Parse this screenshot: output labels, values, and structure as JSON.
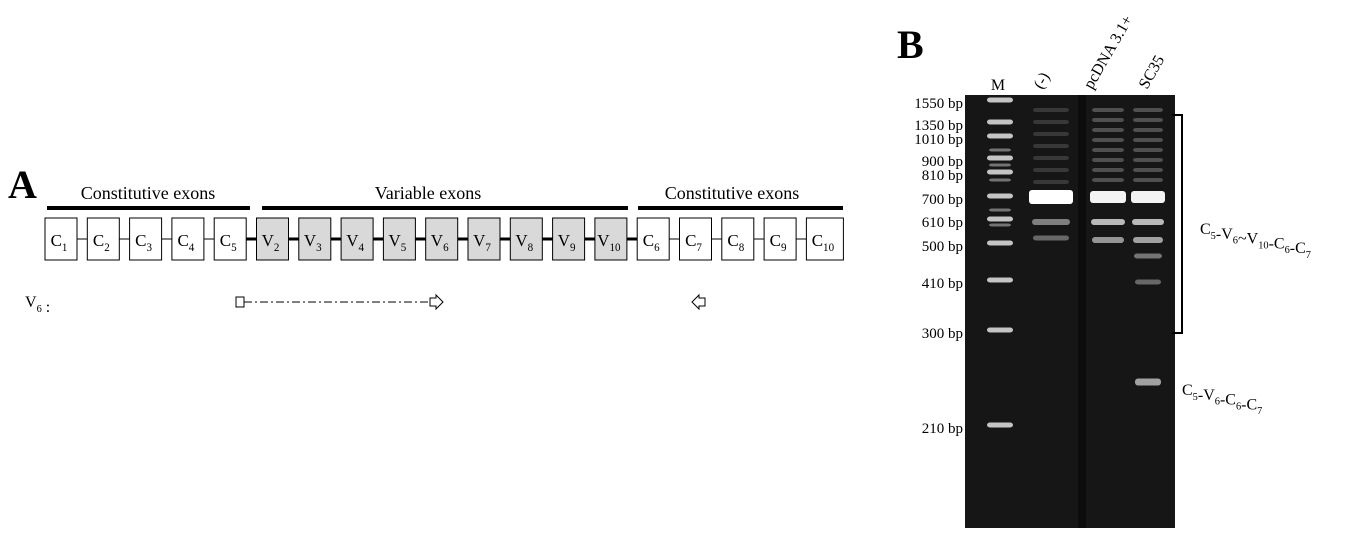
{
  "panel_a": {
    "label": "A",
    "headers": [
      "Constitutive exons",
      "Variable exons",
      "Constitutive exons"
    ],
    "exons": [
      {
        "name": "C",
        "num": "1",
        "variable": false
      },
      {
        "name": "C",
        "num": "2",
        "variable": false
      },
      {
        "name": "C",
        "num": "3",
        "variable": false
      },
      {
        "name": "C",
        "num": "4",
        "variable": false
      },
      {
        "name": "C",
        "num": "5",
        "variable": false
      },
      {
        "name": "V",
        "num": "2",
        "variable": true
      },
      {
        "name": "V",
        "num": "3",
        "variable": true
      },
      {
        "name": "V",
        "num": "4",
        "variable": true
      },
      {
        "name": "V",
        "num": "5",
        "variable": true
      },
      {
        "name": "V",
        "num": "6",
        "variable": true
      },
      {
        "name": "V",
        "num": "7",
        "variable": true
      },
      {
        "name": "V",
        "num": "8",
        "variable": true
      },
      {
        "name": "V",
        "num": "9",
        "variable": true
      },
      {
        "name": "V",
        "num": "10",
        "variable": true
      },
      {
        "name": "C",
        "num": "6",
        "variable": false
      },
      {
        "name": "C",
        "num": "7",
        "variable": false
      },
      {
        "name": "C",
        "num": "8",
        "variable": false
      },
      {
        "name": "C",
        "num": "9",
        "variable": false
      },
      {
        "name": "C",
        "num": "10",
        "variable": false
      }
    ],
    "primer_label": {
      "name": "V",
      "num": "6",
      "suffix": " :"
    }
  },
  "panel_b": {
    "label": "B",
    "lanes": [
      "M",
      "(-)",
      "pcDNA 3.1+",
      "SC35"
    ],
    "markers": [
      "1550 bp",
      "1350 bp",
      "1010 bp",
      "900 bp",
      "810 bp",
      "700 bp",
      "610 bp",
      "500 bp",
      "410 bp",
      "300 bp",
      "210 bp"
    ],
    "products": [
      {
        "parts": [
          [
            "C",
            "5"
          ],
          [
            "-V",
            "6"
          ],
          [
            "~V",
            "10"
          ],
          [
            "-C",
            "6"
          ],
          [
            "-C",
            "7"
          ]
        ]
      },
      {
        "parts": [
          [
            "C",
            "5"
          ],
          [
            "-V",
            "6"
          ],
          [
            "-C",
            "6"
          ],
          [
            "-C",
            "7"
          ]
        ]
      }
    ]
  }
}
